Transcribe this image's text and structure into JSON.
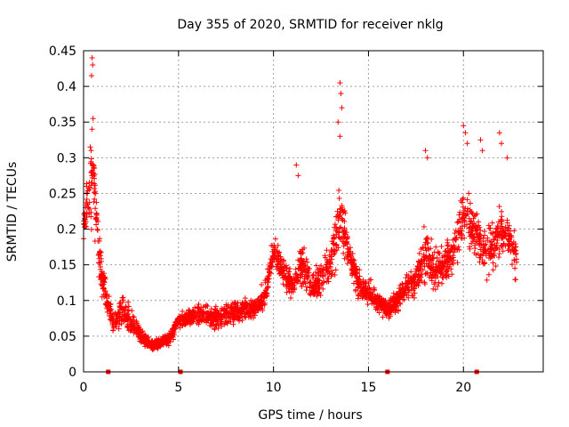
{
  "chart_data": {
    "type": "scatter",
    "title": "Day 355 of 2020, SRMTID for receiver nklg",
    "xlabel": "GPS time / hours",
    "ylabel": "SRMTID / TECUs",
    "xlim": [
      0,
      24.2
    ],
    "ylim": [
      0,
      0.45
    ],
    "xticks": [
      0,
      5,
      10,
      15,
      20
    ],
    "xtick_labels": [
      "0",
      "5",
      "10",
      "15",
      "20"
    ],
    "yticks": [
      0,
      0.05,
      0.1,
      0.15,
      0.2,
      0.25,
      0.3,
      0.35,
      0.4,
      0.45
    ],
    "ytick_labels": [
      "0",
      "0.05",
      "0.1",
      "0.15",
      "0.2",
      "0.25",
      "0.3",
      "0.35",
      "0.4",
      "0.45"
    ],
    "grid": true,
    "marker": "+",
    "color": "#ff0000",
    "zero_markers_x": [
      1.3,
      5.1,
      16.0,
      20.7
    ],
    "profile": [
      [
        0.0,
        0.21,
        0.045
      ],
      [
        0.3,
        0.24,
        0.07
      ],
      [
        0.5,
        0.3,
        0.12
      ],
      [
        0.8,
        0.16,
        0.06
      ],
      [
        1.2,
        0.1,
        0.035
      ],
      [
        1.6,
        0.07,
        0.025
      ],
      [
        2.0,
        0.085,
        0.04
      ],
      [
        2.5,
        0.07,
        0.035
      ],
      [
        3.0,
        0.05,
        0.02
      ],
      [
        3.5,
        0.038,
        0.012
      ],
      [
        4.0,
        0.04,
        0.012
      ],
      [
        4.6,
        0.05,
        0.015
      ],
      [
        5.0,
        0.07,
        0.018
      ],
      [
        5.5,
        0.075,
        0.02
      ],
      [
        6.0,
        0.08,
        0.025
      ],
      [
        7.0,
        0.075,
        0.025
      ],
      [
        8.0,
        0.085,
        0.025
      ],
      [
        9.0,
        0.09,
        0.025
      ],
      [
        9.5,
        0.1,
        0.03
      ],
      [
        10.0,
        0.17,
        0.04
      ],
      [
        10.5,
        0.14,
        0.04
      ],
      [
        11.0,
        0.12,
        0.035
      ],
      [
        11.5,
        0.15,
        0.05
      ],
      [
        12.0,
        0.12,
        0.035
      ],
      [
        12.5,
        0.13,
        0.04
      ],
      [
        13.0,
        0.15,
        0.05
      ],
      [
        13.5,
        0.22,
        0.09
      ],
      [
        14.0,
        0.16,
        0.04
      ],
      [
        14.5,
        0.12,
        0.035
      ],
      [
        15.0,
        0.11,
        0.03
      ],
      [
        15.5,
        0.1,
        0.03
      ],
      [
        16.0,
        0.09,
        0.025
      ],
      [
        16.5,
        0.1,
        0.03
      ],
      [
        17.0,
        0.12,
        0.035
      ],
      [
        17.5,
        0.13,
        0.04
      ],
      [
        18.0,
        0.16,
        0.06
      ],
      [
        18.5,
        0.14,
        0.05
      ],
      [
        19.0,
        0.15,
        0.05
      ],
      [
        19.5,
        0.17,
        0.05
      ],
      [
        20.0,
        0.22,
        0.07
      ],
      [
        20.5,
        0.2,
        0.06
      ],
      [
        21.0,
        0.17,
        0.06
      ],
      [
        21.5,
        0.18,
        0.06
      ],
      [
        22.0,
        0.2,
        0.06
      ],
      [
        22.5,
        0.18,
        0.05
      ],
      [
        22.8,
        0.16,
        0.05
      ]
    ],
    "spikes": [
      [
        0.45,
        0.44
      ],
      [
        0.48,
        0.43
      ],
      [
        0.42,
        0.415
      ],
      [
        0.5,
        0.355
      ],
      [
        0.45,
        0.34
      ],
      [
        0.35,
        0.315
      ],
      [
        0.4,
        0.31
      ],
      [
        13.5,
        0.405
      ],
      [
        13.55,
        0.39
      ],
      [
        13.6,
        0.37
      ],
      [
        13.4,
        0.35
      ],
      [
        13.5,
        0.33
      ],
      [
        11.2,
        0.29
      ],
      [
        11.3,
        0.275
      ],
      [
        18.0,
        0.31
      ],
      [
        18.1,
        0.3
      ],
      [
        20.0,
        0.345
      ],
      [
        20.1,
        0.335
      ],
      [
        20.2,
        0.32
      ],
      [
        20.9,
        0.325
      ],
      [
        21.0,
        0.31
      ],
      [
        21.9,
        0.335
      ],
      [
        22.0,
        0.32
      ],
      [
        22.3,
        0.3
      ],
      [
        0.2,
        0.25
      ],
      [
        0.1,
        0.23
      ]
    ],
    "n_points": 2600,
    "seed": 355
  }
}
